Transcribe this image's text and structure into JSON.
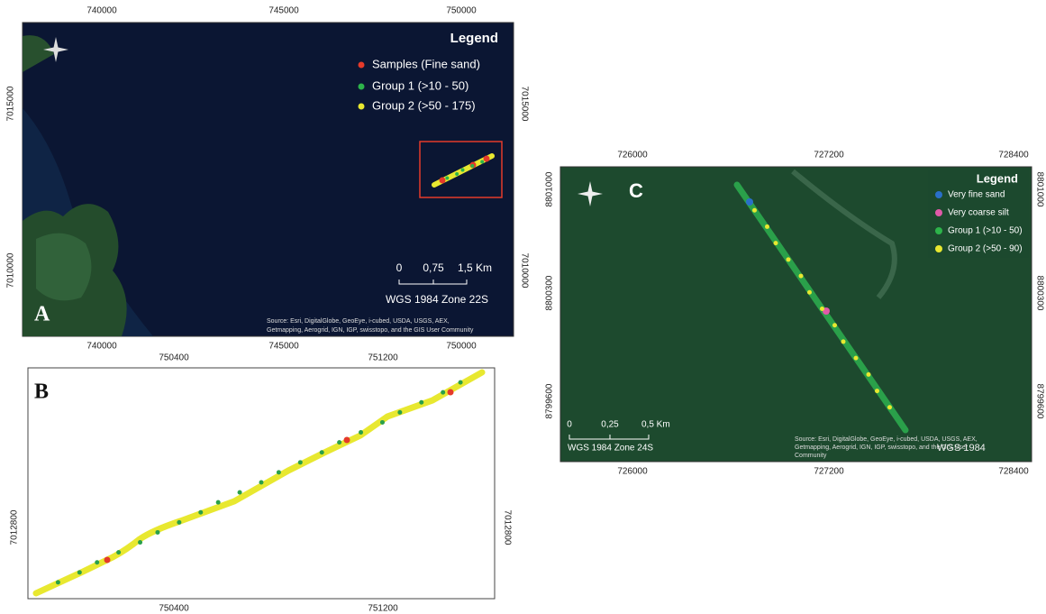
{
  "panel_a": {
    "label": "A",
    "x_labels": [
      "740000",
      "745000",
      "750000"
    ],
    "y_labels": [
      "7015000",
      "7010000"
    ],
    "legend": {
      "title": "Legend",
      "items": [
        "Samples (Fine sand)",
        "Group 1 (>10 - 50)",
        "Group 2 (>50 - 175)"
      ]
    },
    "scale": [
      "0",
      "0,75",
      "1,5 Km"
    ],
    "projection": "WGS 1984 Zone 22S",
    "source": [
      "Source: Esri, DigitalGlobe, GeoEye, i-cubed, USDA, USGS, AEX,",
      "Getmapping, Aerogrid, IGN, IGP, swisstopo, and the GIS User Community"
    ]
  },
  "panel_b": {
    "label": "B",
    "x_labels": [
      "750400",
      "751200"
    ],
    "y_labels": [
      "7012800"
    ]
  },
  "panel_c": {
    "label": "C",
    "x_labels": [
      "726000",
      "727200",
      "728400"
    ],
    "y_labels": [
      "8801000",
      "8800300",
      "8799600"
    ],
    "legend": {
      "title": "Legend",
      "items": [
        "Very fine sand",
        "Very coarse silt",
        "Group 1 (>10 - 50)",
        "Group 2 (>50 - 90)"
      ]
    },
    "scale": [
      "0",
      "0,25",
      "0,5 Km"
    ],
    "projection": "WGS 1984 Zone 24S",
    "overlay": "WGS 1984",
    "source": [
      "Source: Esri, DigitalGlobe, GeoEye, i-cubed, USDA, USGS, AEX,",
      "Getmapping, Aerogrid, IGN, IGP, swisstopo, and the GIS User",
      "Community"
    ]
  }
}
